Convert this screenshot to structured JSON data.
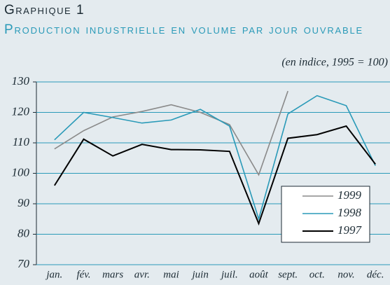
{
  "chart_data": {
    "type": "line",
    "kicker": "Graphique 1",
    "title": "Production industrielle en volume par jour ouvrable",
    "subtitle": "(en indice, 1995 = 100)",
    "categories": [
      "jan.",
      "fév.",
      "mars",
      "avr.",
      "mai",
      "juin",
      "juil.",
      "août",
      "sept.",
      "oct.",
      "nov.",
      "déc."
    ],
    "series": [
      {
        "name": "1999",
        "color": "#8a8a8a",
        "values": [
          108,
          114,
          118.5,
          120.3,
          122.5,
          120,
          116,
          99.5,
          127,
          null,
          null,
          null
        ]
      },
      {
        "name": "1998",
        "color": "#2a9ab8",
        "values": [
          111,
          120,
          118.3,
          116.5,
          117.5,
          121,
          115.5,
          85,
          119.5,
          125.5,
          122.2,
          102.5
        ]
      },
      {
        "name": "1997",
        "color": "#000000",
        "values": [
          96,
          111.2,
          105.7,
          109.5,
          107.8,
          107.7,
          107.2,
          83.5,
          111.5,
          112.7,
          115.5,
          103
        ]
      }
    ],
    "ylim": [
      70,
      130
    ],
    "yticks": [
      70,
      80,
      90,
      100,
      110,
      120,
      130
    ],
    "grid": true,
    "legend": "lower right"
  }
}
